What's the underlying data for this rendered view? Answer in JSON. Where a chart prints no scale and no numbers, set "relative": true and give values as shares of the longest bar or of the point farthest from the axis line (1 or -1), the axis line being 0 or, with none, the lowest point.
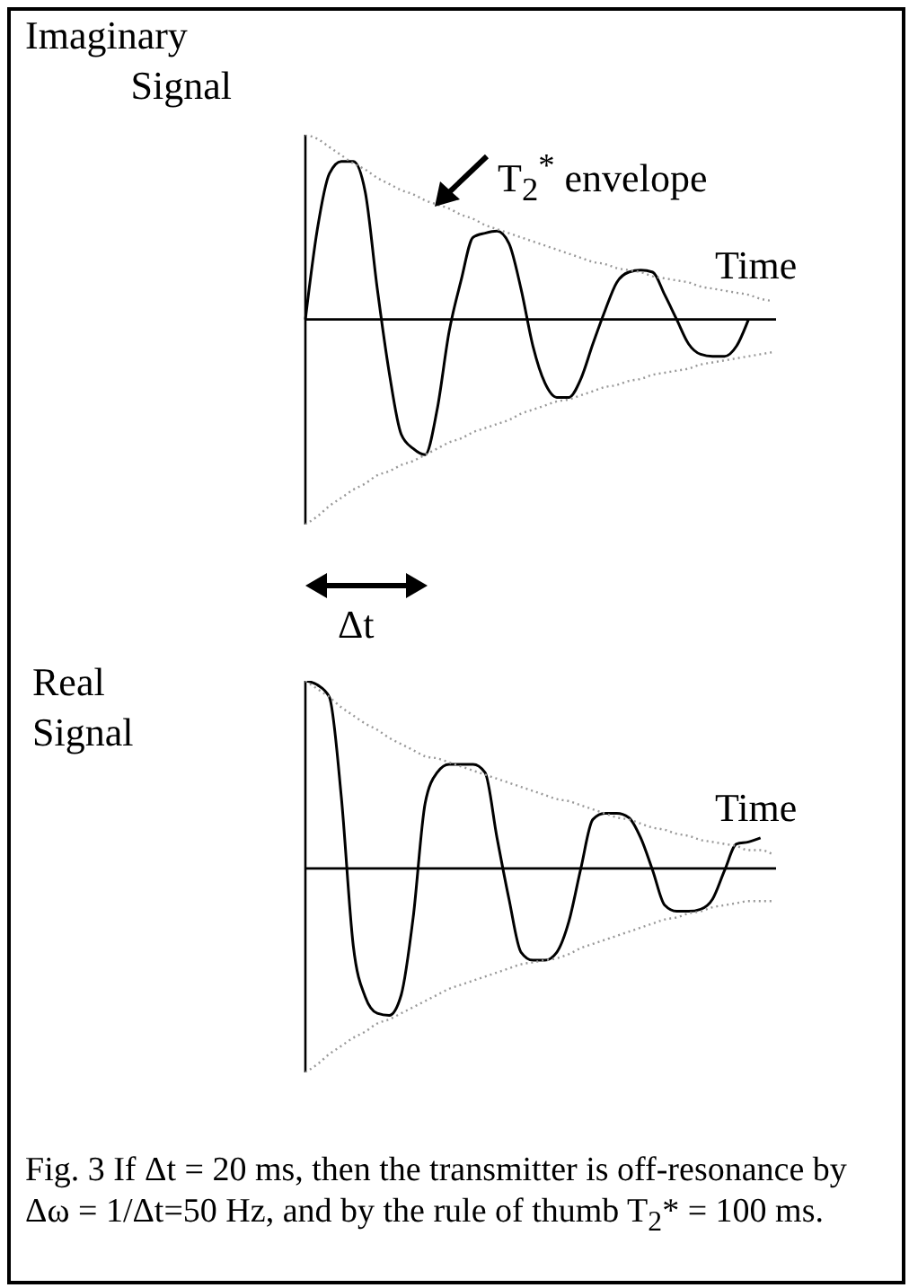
{
  "chart_data": [
    {
      "type": "line",
      "relative": true,
      "ylabel": "Imaginary Signal",
      "xlabel": "Time",
      "tick_labels": false,
      "marker": "none",
      "annotations": [
        "T$_{2}$$^{*}$ envelope"
      ],
      "categories": [
        null,
        null,
        null,
        null,
        null,
        null,
        null,
        null,
        null,
        null,
        null,
        null,
        null,
        null,
        null,
        null,
        null,
        null,
        null,
        null,
        null,
        null,
        null,
        null,
        null,
        null,
        null,
        null,
        null,
        null,
        null,
        null,
        null,
        null,
        null,
        null,
        null,
        null,
        null,
        null
      ],
      "series": [
        {
          "color": "#000000",
          "line_style": "solid",
          "values": [
            0,
            0.44,
            0.71,
            0.77,
            0.77,
            0.62,
            0.15,
            -0.26,
            -0.56,
            -0.63,
            -0.66,
            -0.44,
            -0.06,
            0.19,
            0.4,
            0.42,
            0.43,
            0.37,
            0.15,
            -0.13,
            -0.31,
            -0.38,
            -0.38,
            -0.29,
            -0.12,
            0.04,
            0.18,
            0.23,
            0.24,
            0.23,
            0.12,
            0,
            -0.12,
            -0.17,
            -0.18,
            -0.18,
            -0.13,
            0,
            null,
            null
          ]
        },
        {
          "color": "#999999",
          "line_style": "dotted",
          "values": [
            0.9,
            0.88,
            0.84,
            0.8,
            0.76,
            0.73,
            0.69,
            0.66,
            0.63,
            0.61,
            0.58,
            0.56,
            0.54,
            0.51,
            0.49,
            0.46,
            0.44,
            0.42,
            0.4,
            0.38,
            0.36,
            0.34,
            0.32,
            0.3,
            0.28,
            0.27,
            0.25,
            0.24,
            0.23,
            0.21,
            0.2,
            0.19,
            0.18,
            0.16,
            0.15,
            0.14,
            0.13,
            0.12,
            0.1,
            0.09
          ]
        },
        {
          "color": "#999999",
          "line_style": "dotted",
          "values": [
            -1,
            -0.96,
            -0.91,
            -0.87,
            -0.83,
            -0.8,
            -0.76,
            -0.74,
            -0.71,
            -0.69,
            -0.66,
            -0.63,
            -0.6,
            -0.58,
            -0.55,
            -0.53,
            -0.51,
            -0.49,
            -0.46,
            -0.44,
            -0.42,
            -0.4,
            -0.39,
            -0.37,
            -0.35,
            -0.33,
            -0.32,
            -0.3,
            -0.29,
            -0.27,
            -0.26,
            -0.25,
            -0.24,
            -0.22,
            -0.21,
            -0.2,
            -0.19,
            -0.18,
            -0.17,
            -0.16
          ]
        }
      ]
    },
    {
      "type": "line",
      "relative": true,
      "ylabel": "Real Signal",
      "xlabel": "Time",
      "tick_labels": false,
      "marker": "none",
      "annotations": [
        "Δt",
        "Fig. 3 If Δt = 20 ms, then the transmitter is off-resonance by Δω = 1/Δt=50 Hz, and by the rule of thumb T$_{2}$* = 100 ms."
      ],
      "categories": [
        null,
        null,
        null,
        null,
        null,
        null,
        null,
        null,
        null,
        null,
        null,
        null,
        null,
        null,
        null,
        null,
        null,
        null,
        null,
        null,
        null,
        null,
        null,
        null,
        null,
        null,
        null,
        null,
        null,
        null,
        null,
        null,
        null,
        null,
        null,
        null,
        null,
        null,
        null,
        null
      ],
      "series": [
        {
          "color": "#000000",
          "line_style": "solid",
          "values": [
            0.92,
            0.9,
            0.84,
            0.35,
            -0.38,
            -0.63,
            -0.71,
            -0.72,
            -0.62,
            -0.24,
            0.32,
            0.47,
            0.51,
            0.51,
            0.51,
            0.47,
            0.15,
            -0.15,
            -0.41,
            -0.45,
            -0.45,
            -0.41,
            -0.26,
            0,
            0.24,
            0.27,
            0.27,
            0.25,
            0.15,
            -0.01,
            -0.18,
            -0.21,
            -0.21,
            -0.2,
            -0.15,
            -0.01,
            0.12,
            0.13,
            0.15,
            null
          ]
        },
        {
          "color": "#999999",
          "line_style": "dotted",
          "values": [
            0.92,
            0.88,
            0.84,
            0.79,
            0.75,
            0.71,
            0.68,
            0.64,
            0.61,
            0.58,
            0.55,
            0.54,
            0.52,
            0.5,
            0.48,
            0.46,
            0.44,
            0.42,
            0.4,
            0.38,
            0.36,
            0.34,
            0.33,
            0.31,
            0.29,
            0.27,
            0.25,
            0.24,
            0.22,
            0.2,
            0.19,
            0.17,
            0.16,
            0.14,
            0.13,
            0.12,
            0.11,
            0.09,
            0.09,
            0.07
          ]
        },
        {
          "color": "#999999",
          "line_style": "dotted",
          "values": [
            -1,
            -0.96,
            -0.91,
            -0.87,
            -0.83,
            -0.8,
            -0.76,
            -0.74,
            -0.71,
            -0.68,
            -0.65,
            -0.62,
            -0.59,
            -0.57,
            -0.55,
            -0.53,
            -0.51,
            -0.49,
            -0.47,
            -0.46,
            -0.45,
            -0.44,
            -0.42,
            -0.39,
            -0.37,
            -0.35,
            -0.33,
            -0.31,
            -0.29,
            -0.27,
            -0.25,
            -0.24,
            -0.22,
            -0.21,
            -0.19,
            -0.18,
            -0.17,
            -0.16,
            -0.16,
            -0.16
          ]
        }
      ]
    }
  ]
}
